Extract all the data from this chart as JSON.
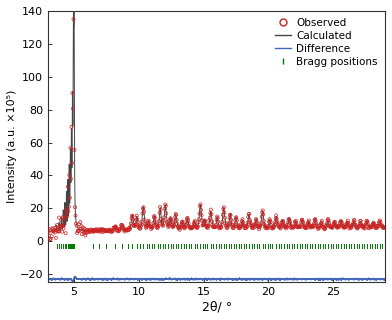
{
  "title": "",
  "xlabel": "2θ/ °",
  "ylabel": "Intensity (a.u. ×10⁵)",
  "xlim": [
    3,
    29
  ],
  "ylim": [
    -25,
    140
  ],
  "yticks": [
    -20,
    0,
    20,
    40,
    60,
    80,
    100,
    120,
    140
  ],
  "xticks": [
    5,
    10,
    15,
    20,
    25
  ],
  "observed_color": "#cc2222",
  "calculated_color": "#444444",
  "difference_color": "#4466bb",
  "bragg_color": "#007700",
  "legend_entries": [
    "Observed",
    "Calculated",
    "Difference",
    "Bragg positions"
  ],
  "background_color": "#ffffff"
}
